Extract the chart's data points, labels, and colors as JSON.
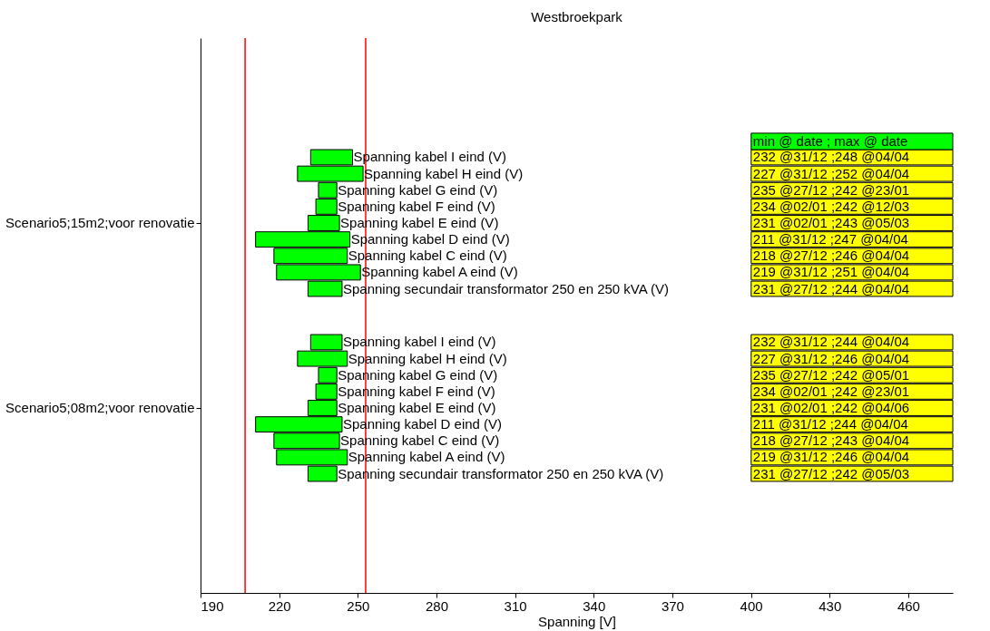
{
  "chart_data": {
    "type": "bar",
    "orientation": "horizontal",
    "title": "Westbroekpark",
    "xlabel": "Spanning [V]",
    "categories": [
      "Scenario5;15m2;voor renovatie",
      "Scenario5;08m2;voor renovatie"
    ],
    "series": [
      {
        "name": "Spanning kabel I eind (V)",
        "color": "#00ff00",
        "base": [
          232,
          232
        ],
        "values": [
          16,
          12
        ]
      },
      {
        "name": "Spanning kabel H eind (V)",
        "color": "#00ff00",
        "base": [
          227,
          227
        ],
        "values": [
          25,
          19
        ]
      },
      {
        "name": "Spanning kabel G eind (V)",
        "color": "#00ff00",
        "base": [
          235,
          235
        ],
        "values": [
          7,
          7
        ]
      },
      {
        "name": "Spanning kabel F eind (V)",
        "color": "#00ff00",
        "base": [
          234,
          234
        ],
        "values": [
          8,
          8
        ]
      },
      {
        "name": "Spanning kabel E eind (V)",
        "color": "#00ff00",
        "base": [
          231,
          231
        ],
        "values": [
          12,
          11
        ]
      },
      {
        "name": "Spanning kabel D eind (V)",
        "color": "#00ff00",
        "base": [
          211,
          211
        ],
        "values": [
          36,
          33
        ]
      },
      {
        "name": "Spanning kabel C eind (V)",
        "color": "#00ff00",
        "base": [
          218,
          218
        ],
        "values": [
          28,
          25
        ]
      },
      {
        "name": "Spanning kabel A eind (V)",
        "color": "#00ff00",
        "base": [
          219,
          219
        ],
        "values": [
          32,
          27
        ]
      },
      {
        "name": "Spanning secundair transformator 250 en 250 kVA (V)",
        "color": "#00ff00",
        "base": [
          231,
          231
        ],
        "values": [
          13,
          11
        ]
      }
    ],
    "xlim": [
      190,
      477
    ],
    "xticks": [
      190,
      220,
      250,
      280,
      310,
      340,
      370,
      400,
      430,
      460
    ],
    "ref_lines": [
      {
        "axis": "x",
        "value": 207,
        "color": "#ff0000"
      },
      {
        "axis": "x",
        "value": 253,
        "color": "#ff0000"
      }
    ],
    "annotations": [
      "min @ date ; max @ date",
      "232 @31/12 ;248 @04/04",
      "227 @31/12 ;252 @04/04",
      "235 @27/12 ;242 @23/01",
      "234 @02/01 ;242 @12/03",
      "231 @02/01 ;243 @05/03",
      "211 @31/12 ;247 @04/04",
      "218 @27/12 ;246 @04/04",
      "219 @31/12 ;251 @04/04",
      "231 @27/12 ;244 @04/04",
      "232 @31/12 ;244 @04/04",
      "227 @31/12 ;246 @04/04",
      "235 @27/12 ;242 @05/01",
      "234 @02/01 ;242 @23/01",
      "231 @02/01 ;242 @04/06",
      "211 @31/12 ;244 @04/04",
      "218 @27/12 ;243 @04/04",
      "219 @31/12 ;246 @04/04",
      "231 @27/12 ;242 @05/03"
    ],
    "grid": false
  }
}
